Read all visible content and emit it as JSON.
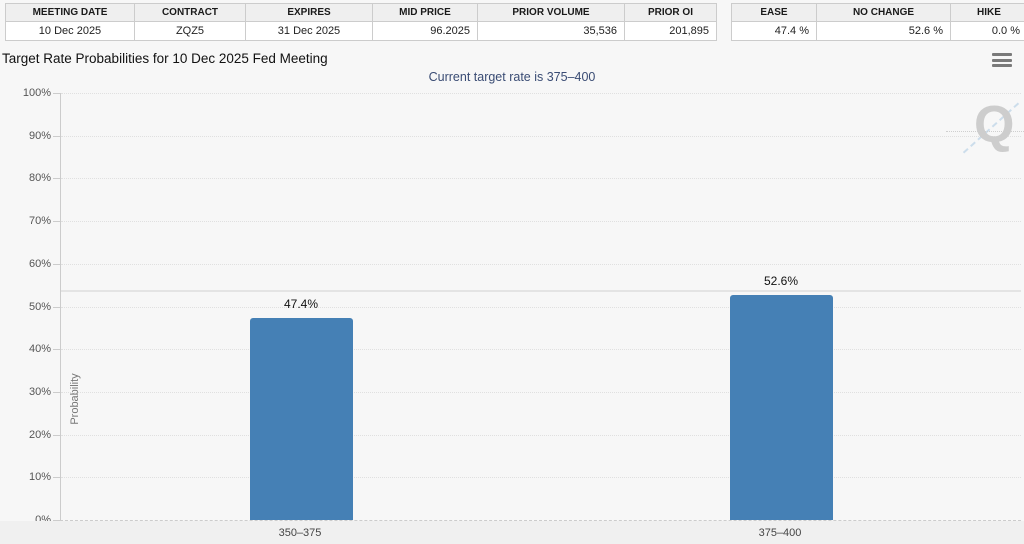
{
  "tables": {
    "contract": {
      "headers": [
        "MEETING DATE",
        "CONTRACT",
        "EXPIRES",
        "MID PRICE",
        "PRIOR VOLUME",
        "PRIOR OI"
      ],
      "values": [
        "10 Dec 2025",
        "ZQZ5",
        "31 Dec 2025",
        "96.2025",
        "35,536",
        "201,895"
      ]
    },
    "rate_move": {
      "headers": [
        "EASE",
        "NO CHANGE",
        "HIKE"
      ],
      "values": [
        "47.4 %",
        "52.6 %",
        "0.0 %"
      ]
    }
  },
  "header": {
    "menu_icon": "hamburger-menu"
  },
  "chart_data": {
    "type": "bar",
    "title": "Target Rate Probabilities for 10 Dec 2025 Fed Meeting",
    "subtitle": "Current target rate is 375–400",
    "categories": [
      "350–375",
      "375–400"
    ],
    "values": [
      47.4,
      52.6
    ],
    "value_labels": [
      "47.4%",
      "52.6%"
    ],
    "xlabel": "",
    "ylabel": "Probability",
    "ylim": [
      0,
      100
    ],
    "ytick_step": 10,
    "ytick_labels": [
      "0%",
      "10%",
      "20%",
      "30%",
      "40%",
      "50%",
      "60%",
      "70%",
      "80%",
      "90%",
      "100%"
    ],
    "grid": "horizontal-dotted",
    "legend": "none",
    "reference_line_pct": 53.8,
    "bar_color": "#4580b5",
    "watermark": "Q"
  },
  "colors": {
    "bar": "#4580b5",
    "subtitle_text": "#3a4c74",
    "grid": "#e0e0e0",
    "axis": "#cccccc",
    "reference_line": "#e4e4e4",
    "watermark_gray": "#cdcdcd",
    "watermark_blue": "#aac9e2"
  }
}
